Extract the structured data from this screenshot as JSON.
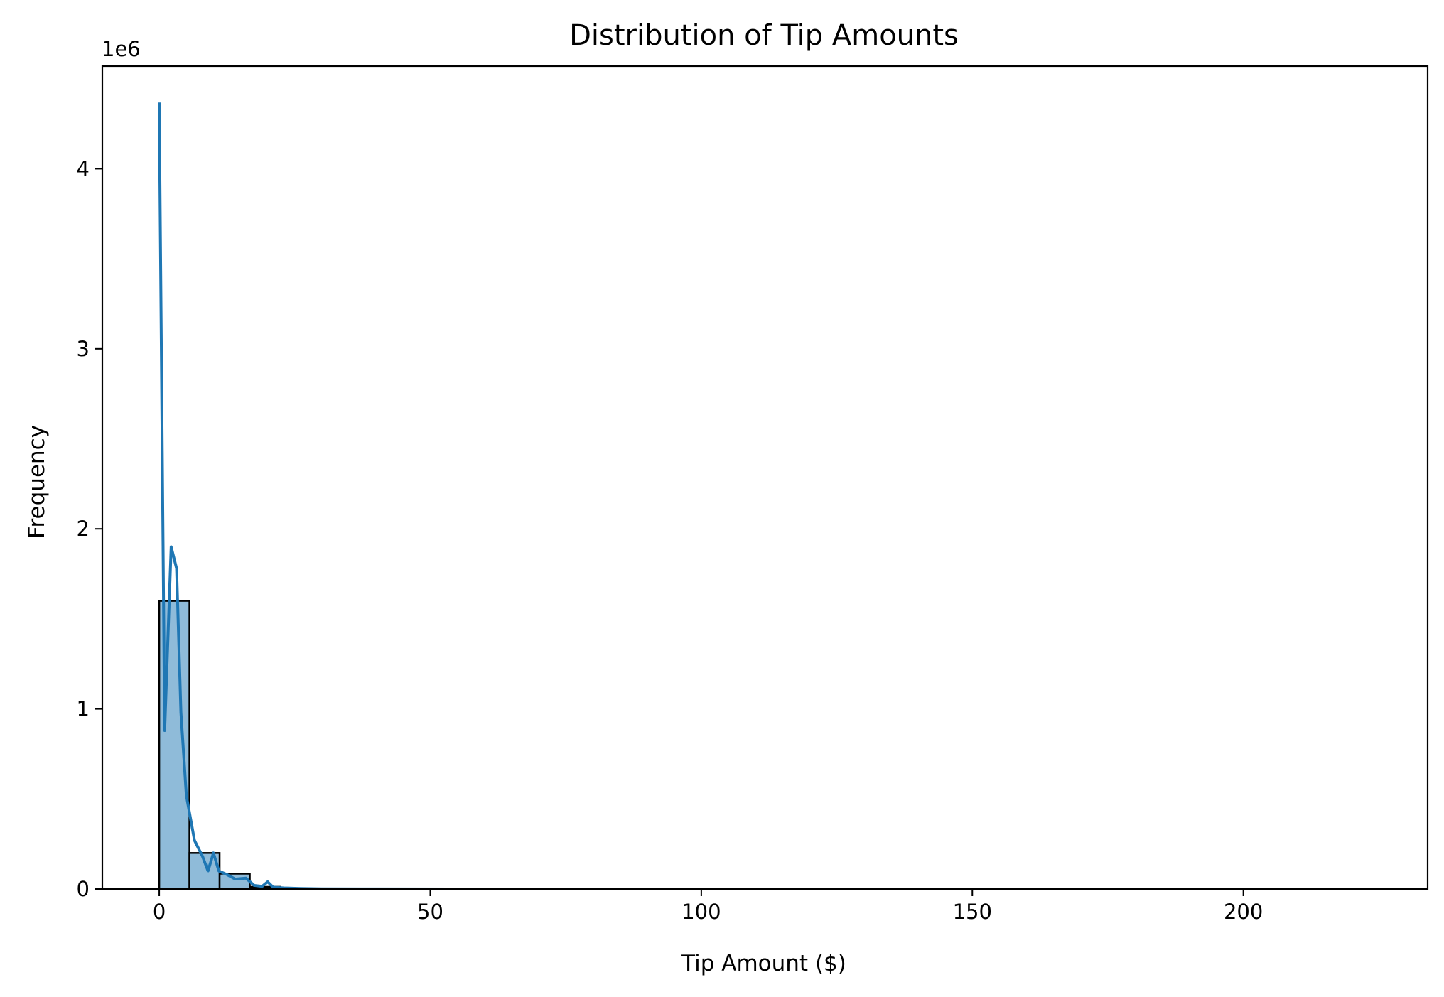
{
  "chart_data": {
    "type": "bar",
    "title": "Distribution of Tip Amounts",
    "xlabel": "Tip Amount ($)",
    "ylabel": "Frequency",
    "y_scale_multiplier_label": "1e6",
    "xlim": [
      -10.5,
      234
    ],
    "ylim": [
      0,
      4.57
    ],
    "x_ticks": [
      0,
      50,
      100,
      150,
      200
    ],
    "x_tick_labels": [
      "0",
      "50",
      "100",
      "150",
      "200"
    ],
    "y_ticks": [
      0,
      1,
      2,
      3,
      4
    ],
    "y_tick_labels": [
      "0",
      "1",
      "2",
      "3",
      "4"
    ],
    "histogram": {
      "bin_width": 5.57,
      "bins": [
        {
          "x0": 0,
          "x1": 5.57,
          "count": 1.6
        },
        {
          "x0": 5.57,
          "x1": 11.14,
          "count": 0.2
        },
        {
          "x0": 11.14,
          "x1": 16.71,
          "count": 0.085
        },
        {
          "x0": 16.71,
          "x1": 22.28,
          "count": 0.012
        },
        {
          "x0": 22.28,
          "x1": 27.85,
          "count": 0.003
        }
      ]
    },
    "kde_line": {
      "x": [
        0,
        1,
        2.2,
        3.2,
        4.0,
        5.0,
        6.5,
        8.0,
        9.0,
        10.0,
        11.0,
        12.5,
        14.0,
        16.0,
        17.5,
        19.0,
        20.0,
        21.0,
        23.0,
        26.0,
        30.0,
        40.0,
        60.0,
        100.0,
        150.0,
        200.0,
        223.0
      ],
      "y": [
        4.36,
        0.88,
        1.9,
        1.78,
        0.98,
        0.52,
        0.27,
        0.18,
        0.1,
        0.2,
        0.1,
        0.08,
        0.055,
        0.06,
        0.02,
        0.015,
        0.04,
        0.01,
        0.006,
        0.003,
        0.001,
        0.0003,
        0.0001,
        5e-05,
        3e-05,
        2e-05,
        1e-05
      ]
    },
    "colors": {
      "bar_fill": "#8fbbd9",
      "bar_edge": "#000000",
      "line": "#1f77b4"
    },
    "grid": false,
    "legend": "none"
  }
}
